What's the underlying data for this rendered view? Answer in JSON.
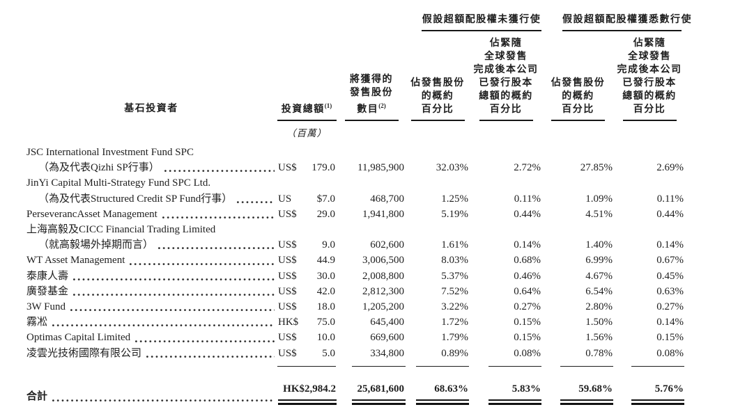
{
  "colors": {
    "background": "#ffffff",
    "text": "#1e1e1e",
    "rule": "#161616"
  },
  "table": {
    "group_headers": {
      "unexercised": "假設超額配股權未獲行使",
      "fully_exercised": "假設超額配股權獲悉數行使"
    },
    "col_headers": {
      "investor": "基石投資者",
      "investment_label": "投資總額",
      "investment_sup": "(1)",
      "investment_unit": "（百萬）",
      "shares_label": "將獲得的\n發售股份\n數目",
      "shares_sup": "(2)",
      "pct_offering": "佔發售股份\n的概約\n百分比",
      "pct_capital": "佔緊隨\n全球發售\n完成後本公司\n已發行股本\n總額的概約\n百分比"
    },
    "rows": [
      {
        "pre": "JSC International Investment Fund SPC",
        "name": "（為及代表Qizhi SP行事）",
        "cur": "US$",
        "amt": "179.0",
        "shares": "11,985,900",
        "p1": "32.03%",
        "p2": "2.72%",
        "p3": "27.85%",
        "p4": "2.69%"
      },
      {
        "pre": "JinYi Capital Multi-Strategy Fund SPC Ltd.",
        "name": "（為及代表Structured Credit SP Fund行事）",
        "cur": "US",
        "amt": "$7.0",
        "shares": "468,700",
        "p1": "1.25%",
        "p2": "0.11%",
        "p3": "1.09%",
        "p4": "0.11%"
      },
      {
        "pre": "",
        "name": "PerseverancAsset Management",
        "cur": "US$",
        "amt": "29.0",
        "shares": "1,941,800",
        "p1": "5.19%",
        "p2": "0.44%",
        "p3": "4.51%",
        "p4": "0.44%"
      },
      {
        "pre": "上海高毅及CICC Financial Trading Limited",
        "name": "（就高毅場外掉期而言）",
        "cur": "US$",
        "amt": "9.0",
        "shares": "602,600",
        "p1": "1.61%",
        "p2": "0.14%",
        "p3": "1.40%",
        "p4": "0.14%"
      },
      {
        "pre": "",
        "name": "WT Asset Management",
        "cur": "US$",
        "amt": "44.9",
        "shares": "3,006,500",
        "p1": "8.03%",
        "p2": "0.68%",
        "p3": "6.99%",
        "p4": "0.67%"
      },
      {
        "pre": "",
        "name": "泰康人壽",
        "cur": "US$",
        "amt": "30.0",
        "shares": "2,008,800",
        "p1": "5.37%",
        "p2": "0.46%",
        "p3": "4.67%",
        "p4": "0.45%"
      },
      {
        "pre": "",
        "name": "廣發基金",
        "cur": "US$",
        "amt": "42.0",
        "shares": "2,812,300",
        "p1": "7.52%",
        "p2": "0.64%",
        "p3": "6.54%",
        "p4": "0.63%"
      },
      {
        "pre": "",
        "name": "3W Fund",
        "cur": "US$",
        "amt": "18.0",
        "shares": "1,205,200",
        "p1": "3.22%",
        "p2": "0.27%",
        "p3": "2.80%",
        "p4": "0.27%"
      },
      {
        "pre": "",
        "name": "霧凇",
        "cur": "HK$",
        "amt": "75.0",
        "shares": "645,400",
        "p1": "1.72%",
        "p2": "0.15%",
        "p3": "1.50%",
        "p4": "0.14%"
      },
      {
        "pre": "",
        "name": "Optimas Capital Limited",
        "cur": "US$",
        "amt": "10.0",
        "shares": "669,600",
        "p1": "1.79%",
        "p2": "0.15%",
        "p3": "1.56%",
        "p4": "0.15%"
      },
      {
        "pre": "",
        "name": "凌雲光技術國際有限公司",
        "cur": "US$",
        "amt": "5.0",
        "shares": "334,800",
        "p1": "0.89%",
        "p2": "0.08%",
        "p3": "0.78%",
        "p4": "0.08%"
      }
    ],
    "total": {
      "label": "合計",
      "amount": "HK$2,984.2",
      "shares": "25,681,600",
      "p1": "68.63%",
      "p2": "5.83%",
      "p3": "59.68%",
      "p4": "5.76%"
    }
  }
}
